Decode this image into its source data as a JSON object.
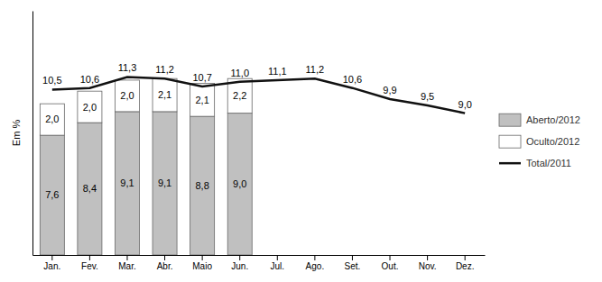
{
  "chart_data": {
    "type": "bar",
    "stacked": true,
    "data_labels": true,
    "legend": "right",
    "tick_labels": "x",
    "y_label": "Em %",
    "categories": [
      "Jan.",
      "Fev.",
      "Mar.",
      "Abr.",
      "Maio",
      "Jun.",
      "Jul.",
      "Ago.",
      "Set.",
      "Out.",
      "Nov.",
      "Dez."
    ],
    "ylim": [
      0,
      15.5
    ],
    "yticks": [],
    "series": [
      {
        "name": "Aberto/2012",
        "type": "bar",
        "color": "#c0c0c0",
        "values": [
          7.6,
          8.4,
          9.1,
          9.1,
          8.8,
          9.0,
          null,
          null,
          null,
          null,
          null,
          null
        ],
        "value_labels": [
          "7,6",
          "8,4",
          "9,1",
          "9,1",
          "8,8",
          "9,0",
          null,
          null,
          null,
          null,
          null,
          null
        ]
      },
      {
        "name": "Oculto/2012",
        "type": "bar",
        "color": "#ffffff",
        "values": [
          2.0,
          2.0,
          2.0,
          2.1,
          2.1,
          2.2,
          null,
          null,
          null,
          null,
          null,
          null
        ],
        "value_labels": [
          "2,0",
          "2,0",
          "2,0",
          "2,1",
          "2,1",
          "2,2",
          null,
          null,
          null,
          null,
          null,
          null
        ]
      },
      {
        "name": "Total/2011",
        "type": "line",
        "color": "#111111",
        "values": [
          10.5,
          10.6,
          11.3,
          11.2,
          10.7,
          11.0,
          11.1,
          11.2,
          10.6,
          9.9,
          9.5,
          9.0
        ],
        "value_labels": [
          "10,5",
          "10,6",
          "11,3",
          "11,2",
          "10,7",
          "11,0",
          "11,1",
          "11,2",
          "10,6",
          "9,9",
          "9,5",
          "9,0"
        ]
      }
    ]
  }
}
